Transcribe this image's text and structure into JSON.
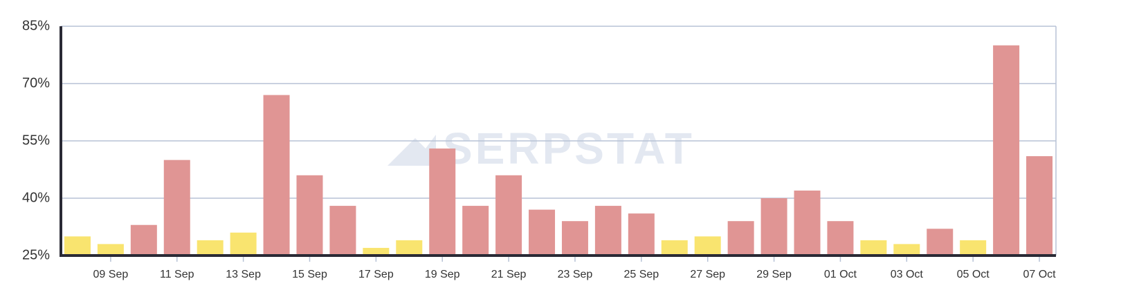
{
  "chart_data": {
    "type": "bar",
    "watermark": "SERPSTAT",
    "categories": [
      null,
      "09 Sep",
      null,
      "11 Sep",
      null,
      "13 Sep",
      null,
      "15 Sep",
      null,
      "17 Sep",
      null,
      "19 Sep",
      null,
      "21 Sep",
      null,
      "23 Sep",
      null,
      "25 Sep",
      null,
      "27 Sep",
      null,
      "29 Sep",
      null,
      "01 Oct",
      null,
      "03 Oct",
      null,
      "05 Oct",
      null,
      "07 Oct"
    ],
    "values": [
      30,
      28,
      33,
      50,
      29,
      31,
      67,
      46,
      38,
      27,
      29,
      53,
      38,
      46,
      37,
      34,
      38,
      36,
      29,
      30,
      34,
      40,
      42,
      34,
      29,
      28,
      32,
      29,
      80,
      51
    ],
    "colors": [
      "#f9e46f",
      "#f9e46f",
      "#e09594",
      "#e09594",
      "#f9e46f",
      "#f9e46f",
      "#e09594",
      "#e09594",
      "#e09594",
      "#f9e46f",
      "#f9e46f",
      "#e09594",
      "#e09594",
      "#e09594",
      "#e09594",
      "#e09594",
      "#e09594",
      "#e09594",
      "#f9e46f",
      "#f9e46f",
      "#e09594",
      "#e09594",
      "#e09594",
      "#e09594",
      "#f9e46f",
      "#f9e46f",
      "#e09594",
      "#f9e46f",
      "#e09594",
      "#e09594"
    ],
    "ylim": [
      25,
      85
    ],
    "yticks": [
      {
        "value": 25,
        "label": "25%"
      },
      {
        "value": 40,
        "label": "40%"
      },
      {
        "value": 55,
        "label": "55%"
      },
      {
        "value": 70,
        "label": "70%"
      },
      {
        "value": 85,
        "label": "85%"
      }
    ],
    "grid": true
  }
}
